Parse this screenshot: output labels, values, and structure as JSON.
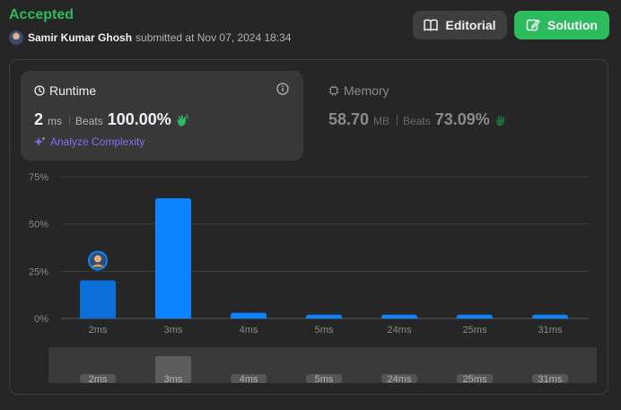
{
  "header": {
    "status": "Accepted",
    "author": "Samir Kumar Ghosh",
    "submitted_text": "submitted at Nov 07, 2024 18:34",
    "editorial_label": "Editorial",
    "solution_label": "Solution"
  },
  "runtime": {
    "title": "Runtime",
    "value": "2",
    "unit": "ms",
    "beats_label": "Beats",
    "beats": "100.00%",
    "analyze_label": "Analyze Complexity"
  },
  "memory": {
    "title": "Memory",
    "value": "58.70",
    "unit": "MB",
    "beats_label": "Beats",
    "beats": "73.09%"
  },
  "colors": {
    "accepted": "#2cbb5d",
    "bar": "#0a84ff",
    "selected_bar": "#0a6fd8",
    "analyze": "#8b6cf0"
  },
  "chart_data": {
    "type": "bar",
    "categories": [
      "2ms",
      "3ms",
      "4ms",
      "5ms",
      "24ms",
      "25ms",
      "31ms"
    ],
    "values": [
      20.2,
      63.6,
      3.0,
      2.0,
      2.0,
      2.0,
      2.0
    ],
    "yticks": [
      "0%",
      "25%",
      "50%",
      "75%"
    ],
    "ytick_values": [
      0,
      25,
      50,
      75
    ],
    "ylim": [
      0,
      75
    ],
    "selected_index": 0,
    "navigator_labels": [
      "2ms",
      "3ms",
      "4ms",
      "5ms",
      "24ms",
      "25ms",
      "31ms"
    ],
    "grid": true
  }
}
